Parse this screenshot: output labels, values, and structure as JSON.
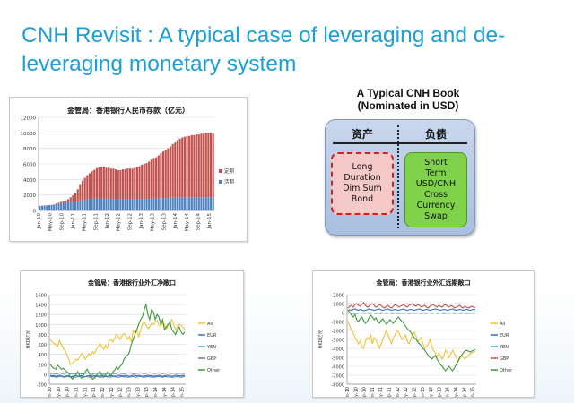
{
  "slide": {
    "title": "CNH Revisit : A typical case of leveraging and de-leveraging monetary system"
  },
  "book": {
    "title_line1": "A Typical CNH Book",
    "title_line2": "(Nominated in USD)",
    "assets_header": "资产",
    "liabilities_header": "负债",
    "assets_lines": [
      "Long",
      "Duration",
      "Dim Sum",
      "Bond"
    ],
    "liabilities_lines": [
      "Short",
      "Term",
      "USD/CNH",
      "Cross",
      "Currency",
      "Swap"
    ],
    "colors": {
      "asset_fill": "#f6c9c9",
      "asset_border": "#d12020",
      "liab_fill": "#7fd24a",
      "panel": "#b7c9e6"
    }
  },
  "chart_data": [
    {
      "type": "bar",
      "stacked": true,
      "title": "金管局：香港银行人民币存款（亿元）",
      "ylim": [
        0,
        12000
      ],
      "yticks": [
        0,
        2000,
        4000,
        6000,
        8000,
        10000,
        12000
      ],
      "xtick_labels": [
        "Jan-10",
        "May-10",
        "Sep-10",
        "Jan-11",
        "May-11",
        "Sep-11",
        "Jan-12",
        "May-12",
        "Sep-12",
        "Jan-13",
        "May-13",
        "Sep-13",
        "Jan-14",
        "May-14",
        "Sep-14",
        "Jan-15"
      ],
      "legend_position": "right",
      "series": [
        {
          "name": "定期",
          "color": "#c0504d",
          "values": [
            0,
            0,
            0,
            0,
            0,
            0,
            20,
            100,
            150,
            200,
            250,
            300,
            400,
            600,
            800,
            1000,
            1500,
            2000,
            2500,
            2800,
            3100,
            3300,
            3500,
            3700,
            3900,
            4000,
            4100,
            4100,
            4000,
            4000,
            3900,
            3900,
            3800,
            3700,
            3700,
            3800,
            3800,
            3900,
            3900,
            3900,
            4000,
            4100,
            4200,
            4400,
            4500,
            4600,
            4800,
            5000,
            5200,
            5300,
            5500,
            5800,
            6000,
            6200,
            6400,
            6600,
            6900,
            7100,
            7400,
            7600,
            7700,
            7800,
            7900,
            7900,
            8000,
            8000,
            8100,
            8100,
            8200,
            8200,
            8300,
            8300,
            8300,
            8200
          ]
        },
        {
          "name": "活期",
          "color": "#4f81bd",
          "values": [
            600,
            620,
            640,
            660,
            700,
            720,
            750,
            800,
            850,
            900,
            950,
            1000,
            1050,
            1100,
            1150,
            1200,
            1250,
            1300,
            1350,
            1400,
            1450,
            1500,
            1550,
            1550,
            1550,
            1550,
            1550,
            1550,
            1500,
            1500,
            1500,
            1500,
            1500,
            1500,
            1500,
            1500,
            1500,
            1500,
            1500,
            1500,
            1500,
            1500,
            1500,
            1500,
            1500,
            1500,
            1500,
            1550,
            1550,
            1550,
            1600,
            1600,
            1600,
            1600,
            1600,
            1650,
            1650,
            1650,
            1650,
            1650,
            1700,
            1700,
            1700,
            1700,
            1700,
            1700,
            1700,
            1700,
            1700,
            1700,
            1700,
            1700,
            1700,
            1700
          ]
        }
      ]
    },
    {
      "type": "line",
      "title": "金管局：香港银行业外汇净敞口",
      "ylabel": "HKD亿元",
      "ylim": [
        -200,
        1600
      ],
      "yticks": [
        -200,
        0,
        200,
        400,
        600,
        800,
        1000,
        1200,
        1400,
        1600
      ],
      "xtick_labels": [
        "Jan-10",
        "May-10",
        "Sep-10",
        "Jan-11",
        "May-11",
        "Sep-11",
        "Jan-12",
        "May-12",
        "Sep-12",
        "Jan-13",
        "May-13",
        "Sep-13",
        "Jan-14",
        "May-14",
        "Sep-14",
        "Jan-15"
      ],
      "legend_position": "right",
      "series": [
        {
          "name": "All",
          "color": "#f1c232",
          "values": [
            700,
            650,
            620,
            600,
            560,
            680,
            600,
            520,
            480,
            400,
            300,
            200,
            220,
            250,
            300,
            280,
            350,
            420,
            380,
            300,
            350,
            420,
            380,
            450,
            420,
            500,
            550,
            620,
            560,
            500,
            580,
            520,
            680,
            700,
            650,
            720,
            800,
            760,
            700,
            780,
            820,
            780,
            700,
            760,
            650,
            880,
            820,
            900,
            760,
            880,
            1000,
            1050,
            980,
            920,
            950,
            1020,
            1000,
            1050,
            1080,
            1000,
            950,
            1050,
            1000,
            900,
            980,
            1050,
            1100,
            1000,
            900,
            950,
            1000,
            980,
            950,
            900
          ]
        },
        {
          "name": "EUR",
          "color": "#3d6fb6",
          "values": [
            -20,
            -30,
            -25,
            -40,
            -35,
            -20,
            -30,
            -45,
            -40,
            -30,
            -35,
            -50,
            -40,
            -30,
            -20,
            -40,
            -30,
            -25,
            -40,
            -50,
            -35,
            -30,
            -40,
            -20,
            -30,
            -25,
            -40,
            -35,
            -30,
            -20,
            -30,
            -40,
            -30,
            -25,
            -35,
            -40,
            -30,
            -20,
            -25,
            -30,
            -35,
            -20,
            -30,
            -40,
            -30,
            -20,
            -25,
            -30,
            -20,
            -30,
            -40,
            -35,
            -30,
            -20,
            -30,
            -25,
            -40,
            -30,
            -35,
            -20,
            -30,
            -40,
            -30,
            -25,
            -20,
            -30,
            -40,
            -30,
            -20,
            -25,
            -30,
            -35,
            -20,
            -30
          ]
        },
        {
          "name": "YEN",
          "color": "#4bacc6",
          "values": [
            10,
            20,
            15,
            5,
            10,
            30,
            20,
            10,
            15,
            25,
            20,
            10,
            5,
            15,
            20,
            25,
            10,
            5,
            15,
            20,
            25,
            30,
            20,
            10,
            15,
            20,
            25,
            15,
            10,
            20,
            15,
            10,
            20,
            25,
            15,
            10,
            20,
            30,
            20,
            15,
            10,
            20,
            25,
            30,
            20,
            10,
            15,
            20,
            25,
            30,
            20,
            15,
            20,
            25,
            30,
            25,
            20,
            15,
            25,
            30,
            20,
            15,
            20,
            25,
            30,
            20,
            15,
            25,
            20,
            15,
            20,
            25,
            20,
            15
          ]
        },
        {
          "name": "GBP",
          "color": "#5b7fa8",
          "values": [
            -40,
            -50,
            -45,
            -60,
            -55,
            -50,
            -40,
            -60,
            -55,
            -50,
            -45,
            -60,
            -55,
            -50,
            -60,
            -45,
            -50,
            -55,
            -60,
            -50,
            -45,
            -55,
            -60,
            -50,
            -55,
            -45,
            -50,
            -60,
            -55,
            -50,
            -45,
            -55,
            -50,
            -60,
            -45,
            -50,
            -55,
            -60,
            -50,
            -45,
            -55,
            -50,
            -60,
            -55,
            -50,
            -45,
            -60,
            -55,
            -50,
            -45,
            -55,
            -60,
            -50,
            -45,
            -55,
            -50,
            -60,
            -55,
            -50,
            -45,
            -55,
            -60,
            -50,
            -45,
            -55,
            -50,
            -60,
            -55,
            -50,
            -45,
            -55,
            -60,
            -50,
            -45
          ]
        },
        {
          "name": "Other",
          "color": "#3a9a3a",
          "values": [
            200,
            150,
            120,
            100,
            180,
            150,
            100,
            120,
            80,
            50,
            20,
            -50,
            -100,
            -50,
            0,
            50,
            -30,
            -80,
            -20,
            50,
            100,
            30,
            -50,
            -100,
            -80,
            -30,
            20,
            60,
            -20,
            -60,
            -20,
            40,
            10,
            -30,
            50,
            80,
            150,
            100,
            160,
            200,
            300,
            350,
            380,
            450,
            600,
            700,
            800,
            900,
            1000,
            1100,
            1150,
            1300,
            1400,
            1200,
            1100,
            1300,
            1250,
            1100,
            1200,
            1150,
            1000,
            1100,
            900,
            950,
            1000,
            1050,
            900,
            850,
            800,
            900,
            950,
            850,
            800,
            850
          ]
        }
      ]
    },
    {
      "type": "line",
      "title": "金管局：香港银行业外汇远期敞口",
      "ylabel": "HKD亿元",
      "ylim": [
        -8000,
        2000
      ],
      "yticks": [
        -8000,
        -7000,
        -6000,
        -5000,
        -4000,
        -3000,
        -2000,
        -1000,
        0,
        1000,
        2000
      ],
      "xtick_labels": [
        "Jan-10",
        "May-10",
        "Sep-10",
        "Jan-11",
        "May-11",
        "Sep-11",
        "Jan-12",
        "May-12",
        "Sep-12",
        "Jan-13",
        "May-13",
        "Sep-13",
        "Jan-14",
        "May-14",
        "Sep-14",
        "Jan-15"
      ],
      "legend_position": "right",
      "series": [
        {
          "name": "All",
          "color": "#f1c232",
          "values": [
            -1000,
            -1500,
            -2000,
            -2200,
            -2800,
            -3000,
            -3500,
            -3200,
            -3800,
            -4000,
            -3200,
            -2800,
            -3000,
            -2500,
            -3500,
            -2800,
            -3000,
            -3500,
            -4000,
            -3500,
            -3000,
            -2500,
            -2000,
            -2500,
            -3000,
            -3500,
            -2800,
            -2500,
            -2000,
            -2200,
            -2600,
            -3000,
            -2800,
            -2500,
            -3200,
            -3500,
            -3000,
            -2500,
            -2200,
            -2600,
            -3200,
            -3000,
            -2800,
            -3500,
            -4000,
            -3800,
            -3500,
            -3000,
            -3800,
            -4200,
            -4500,
            -5000,
            -4500,
            -4800,
            -5200,
            -4800,
            -4200,
            -4500,
            -5000,
            -4600,
            -4200,
            -4600,
            -5000,
            -5500,
            -5200,
            -4800,
            -5000,
            -5200,
            -5000,
            -4800,
            -4600,
            -4500,
            -4400,
            -4300
          ]
        },
        {
          "name": "EUR",
          "color": "#3d6fb6",
          "values": [
            200,
            300,
            250,
            350,
            400,
            300,
            250,
            350,
            300,
            200,
            250,
            300,
            400,
            350,
            300,
            250,
            300,
            350,
            400,
            300,
            250,
            300,
            350,
            400,
            300,
            250,
            300,
            350,
            300,
            250,
            300,
            350,
            400,
            300,
            250,
            300,
            350,
            300,
            250,
            300,
            350,
            400,
            300,
            250,
            300,
            350,
            300,
            250,
            300,
            350,
            400,
            350,
            300,
            250,
            300,
            350,
            300,
            250,
            300,
            350,
            400,
            300,
            250,
            300,
            350,
            300,
            250,
            300,
            350,
            300,
            250,
            300,
            350,
            300
          ]
        },
        {
          "name": "YEN",
          "color": "#4bacc6",
          "values": [
            -100,
            -50,
            -80,
            -120,
            -60,
            -90,
            -100,
            -50,
            -70,
            -110,
            -80,
            -60,
            -90,
            -100,
            -50,
            -80,
            -120,
            -60,
            -90,
            -100,
            -50,
            -70,
            -110,
            -80,
            -60,
            -90,
            -100,
            -50,
            -80,
            -120,
            -60,
            -90,
            -100,
            -50,
            -70,
            -110,
            -80,
            -60,
            -90,
            -100,
            -50,
            -80,
            -120,
            -60,
            -90,
            -100,
            -50,
            -70,
            -110,
            -80,
            -60,
            -90,
            -100,
            -50,
            -80,
            -120,
            -60,
            -90,
            -100,
            -50,
            -70,
            -110,
            -80,
            -60,
            -90,
            -100,
            -50,
            -80,
            -120,
            -60,
            -90,
            -100,
            -50,
            -70
          ]
        },
        {
          "name": "GBP",
          "color": "#c0504d",
          "values": [
            500,
            700,
            800,
            600,
            900,
            1000,
            800,
            700,
            900,
            1100,
            800,
            600,
            700,
            900,
            1000,
            800,
            600,
            700,
            900,
            800,
            600,
            500,
            700,
            800,
            600,
            500,
            700,
            900,
            800,
            600,
            700,
            800,
            900,
            700,
            600,
            800,
            900,
            1000,
            800,
            700,
            900,
            800,
            600,
            700,
            800,
            600,
            500,
            700,
            800,
            900,
            700,
            600,
            800,
            700,
            600,
            800,
            900,
            700,
            600,
            800,
            700,
            500,
            600,
            700,
            800,
            600,
            500,
            700,
            600,
            500,
            600,
            700,
            600,
            500
          ]
        },
        {
          "name": "Other",
          "color": "#3a9a3a",
          "values": [
            300,
            0,
            -300,
            -500,
            -200,
            -800,
            -1000,
            -700,
            -500,
            -900,
            -1200,
            -1000,
            -600,
            -300,
            -500,
            -800,
            -600,
            -1000,
            -1200,
            -900,
            -700,
            -1000,
            -1300,
            -1100,
            -800,
            -1000,
            -1200,
            -900,
            -700,
            -500,
            -800,
            -1000,
            -1200,
            -1500,
            -1800,
            -2000,
            -2200,
            -2500,
            -2800,
            -3000,
            -3300,
            -3500,
            -3700,
            -4000,
            -4200,
            -4500,
            -4800,
            -5000,
            -5200,
            -5000,
            -4800,
            -5200,
            -5500,
            -5800,
            -6000,
            -6300,
            -6500,
            -6200,
            -6000,
            -6300,
            -6500,
            -6200,
            -5800,
            -5500,
            -5000,
            -4800,
            -4500,
            -4300,
            -4200,
            -4300,
            -4400,
            -4300,
            -4200,
            -4100
          ]
        }
      ]
    }
  ]
}
